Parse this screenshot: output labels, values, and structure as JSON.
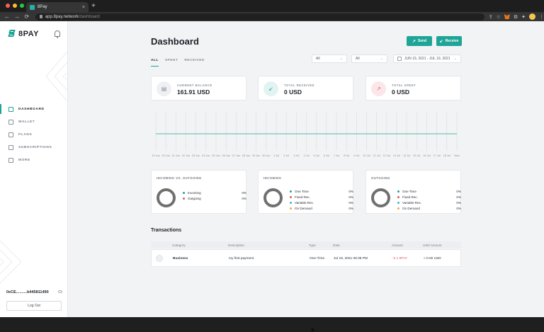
{
  "browser": {
    "tab_title": "8Pay",
    "tab_close": "×",
    "new_tab": "+",
    "url_host": "app.8pay.network",
    "url_path": "/dashboard",
    "back": "←",
    "forward": "→",
    "reload": "⟳"
  },
  "sidebar": {
    "brand": "8PAY",
    "items": [
      {
        "label": "DASHBOARD",
        "icon": "bar-chart-icon"
      },
      {
        "label": "WALLET",
        "icon": "wallet-icon"
      },
      {
        "label": "PLANS",
        "icon": "chart-up-icon"
      },
      {
        "label": "SUBSCRIPTIONS",
        "icon": "refresh-icon"
      },
      {
        "label": "MORE",
        "icon": "grid-icon"
      }
    ],
    "wallet_address": "0xCE..........b445811490",
    "logout": "Log Out"
  },
  "header": {
    "title": "Dashboard",
    "send": "Send",
    "receive": "Receive"
  },
  "tabs": [
    "ALL",
    "SPENT",
    "RECEIVED"
  ],
  "filters": {
    "filter1": "All",
    "filter2": "All",
    "date_range": "JUN 19, 2021 - JUL 19, 2021"
  },
  "stats": {
    "balance": {
      "label": "CURRENT BALANCE",
      "value": "161.91 USD"
    },
    "received": {
      "label": "TOTAL RECEIVED",
      "value": "0 USD"
    },
    "spent": {
      "label": "TOTAL SPENT",
      "value": "0 USD"
    }
  },
  "chart_data": {
    "type": "line",
    "x": [
      "19 Jun",
      "20 Jun",
      "21 Jun",
      "22 Jun",
      "23 Jun",
      "24 Jun",
      "25 Jun",
      "26 Jun",
      "27 Jun",
      "28 Jun",
      "29 Jun",
      "30 Jun",
      "1 Jul",
      "2 Jul",
      "3 Jul",
      "4 Jul",
      "5 Jul",
      "6 Jul",
      "7 Jul",
      "8 Jul",
      "9 Jul",
      "10 Jul",
      "11 Jul",
      "12 Jul",
      "13 Jul",
      "14 Jul",
      "15 Jul",
      "16 Jul",
      "17 Jul",
      "18 Jul",
      "Now"
    ],
    "series": [
      {
        "values": [
          0,
          0,
          0,
          0,
          0,
          0,
          0,
          0,
          0,
          0,
          0,
          0,
          0,
          0,
          0,
          0,
          0,
          0,
          0,
          0,
          0,
          0,
          0,
          0,
          0,
          0,
          0,
          0,
          0,
          0,
          0
        ]
      }
    ],
    "line_color": "#1ea597",
    "grid": true
  },
  "pies": {
    "inout": {
      "title": "INCOMING VS. OUTGOING",
      "items": [
        {
          "label": "Incoming",
          "value": "0%",
          "color": "#1ea597"
        },
        {
          "label": "Outgoing",
          "value": "0%",
          "color": "#e05a6a"
        }
      ]
    },
    "incoming": {
      "title": "INCOMING",
      "items": [
        {
          "label": "One Time",
          "value": "0%",
          "color": "#1ea597"
        },
        {
          "label": "Fixed Rec.",
          "value": "0%",
          "color": "#e05a6a"
        },
        {
          "label": "Variable Rec.",
          "value": "0%",
          "color": "#3bb7c6"
        },
        {
          "label": "On Demand",
          "value": "0%",
          "color": "#f2a93b"
        }
      ]
    },
    "outgoing": {
      "title": "OUTGOING",
      "items": [
        {
          "label": "One Time",
          "value": "0%",
          "color": "#1ea597"
        },
        {
          "label": "Fixed Rec.",
          "value": "0%",
          "color": "#e05a6a"
        },
        {
          "label": "Variable Rec.",
          "value": "0%",
          "color": "#3bb7c6"
        },
        {
          "label": "On Demand",
          "value": "0%",
          "color": "#f2a93b"
        }
      ]
    }
  },
  "transactions": {
    "title": "Transactions",
    "columns": [
      "Category",
      "Description",
      "Type",
      "Date",
      "Amount",
      "USD Amount"
    ],
    "rows": [
      {
        "category": "Business",
        "description": "my first payment",
        "type": "One-Time",
        "date": "Jul 19, 2021 09:38 PM",
        "amount": "-0.1 8PAY",
        "usd": "≈ 0.00 USD"
      }
    ]
  }
}
